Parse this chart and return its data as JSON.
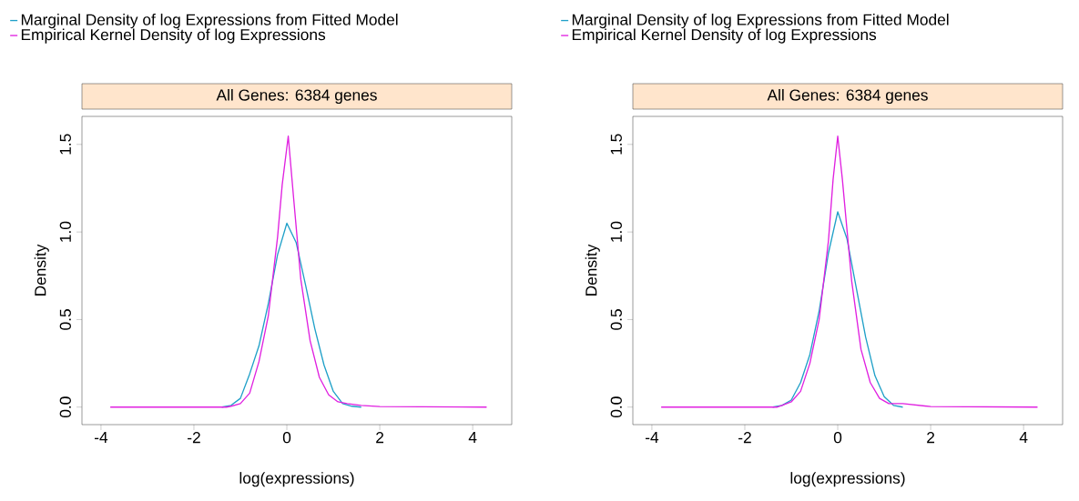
{
  "chart_data": [
    {
      "type": "line",
      "title": "All Genes: 6384 genes",
      "xlabel": "log(expressions)",
      "ylabel": "Density",
      "xlim": [
        -4.41,
        4.84
      ],
      "ylim": [
        -0.1,
        1.66
      ],
      "xticks": [
        -4,
        -2,
        0,
        2,
        4
      ],
      "yticks": [
        {
          "value": 0,
          "label": "0.0"
        },
        {
          "value": 0.5,
          "label": "0.5"
        },
        {
          "value": 1,
          "label": "1.0"
        },
        {
          "value": 1.5,
          "label": "1.5"
        }
      ],
      "legend": "top",
      "series": [
        {
          "name": "Marginal Density of log Expressions from Fitted Model",
          "color": "#1fa0c8",
          "x": [
            -1.4,
            -1.2,
            -1.0,
            -0.8,
            -0.6,
            -0.4,
            -0.2,
            0.0,
            0.2,
            0.4,
            0.6,
            0.8,
            1.0,
            1.2,
            1.4,
            1.6
          ],
          "values": [
            0.0,
            0.01,
            0.05,
            0.19,
            0.35,
            0.59,
            0.87,
            1.05,
            0.94,
            0.7,
            0.45,
            0.24,
            0.09,
            0.02,
            0.005,
            0.0
          ]
        },
        {
          "name": "Empirical Kernel Density of log Expressions",
          "color": "#e020e0",
          "x": [
            -3.8,
            -1.3,
            -1.2,
            -1.0,
            -0.8,
            -0.6,
            -0.4,
            -0.2,
            -0.1,
            0.03,
            0.15,
            0.3,
            0.5,
            0.7,
            0.9,
            1.1,
            1.3,
            1.6,
            2.0,
            4.3
          ],
          "values": [
            0.0,
            0.0,
            0.005,
            0.02,
            0.08,
            0.26,
            0.52,
            0.97,
            1.27,
            1.547,
            1.18,
            0.73,
            0.38,
            0.17,
            0.07,
            0.03,
            0.02,
            0.01,
            0.003,
            0.0
          ]
        }
      ]
    },
    {
      "type": "line",
      "title": "All Genes: 6384 genes",
      "xlabel": "log(expressions)",
      "ylabel": "Density",
      "xlim": [
        -4.41,
        4.84
      ],
      "ylim": [
        -0.1,
        1.66
      ],
      "xticks": [
        -4,
        -2,
        0,
        2,
        4
      ],
      "yticks": [
        {
          "value": 0,
          "label": "0.0"
        },
        {
          "value": 0.5,
          "label": "0.5"
        },
        {
          "value": 1,
          "label": "1.0"
        },
        {
          "value": 1.5,
          "label": "1.5"
        }
      ],
      "legend": "top",
      "series": [
        {
          "name": "Marginal Density of log Expressions from Fitted Model",
          "color": "#1fa0c8",
          "x": [
            -1.4,
            -1.2,
            -1.0,
            -0.8,
            -0.6,
            -0.4,
            -0.2,
            0.0,
            0.2,
            0.4,
            0.6,
            0.8,
            1.0,
            1.2,
            1.4
          ],
          "values": [
            0.0,
            0.01,
            0.04,
            0.14,
            0.3,
            0.55,
            0.88,
            1.115,
            0.96,
            0.68,
            0.4,
            0.18,
            0.06,
            0.01,
            0.0
          ]
        },
        {
          "name": "Empirical Kernel Density of log Expressions",
          "color": "#e020e0",
          "x": [
            -3.8,
            -1.3,
            -1.2,
            -1.0,
            -0.8,
            -0.6,
            -0.4,
            -0.2,
            -0.1,
            0.0,
            0.1,
            0.3,
            0.5,
            0.7,
            0.9,
            1.1,
            1.4,
            2.0,
            4.3
          ],
          "values": [
            0.0,
            0.0,
            0.01,
            0.03,
            0.09,
            0.25,
            0.5,
            0.95,
            1.3,
            1.547,
            1.3,
            0.72,
            0.33,
            0.14,
            0.05,
            0.02,
            0.02,
            0.003,
            0.0
          ]
        }
      ]
    }
  ]
}
